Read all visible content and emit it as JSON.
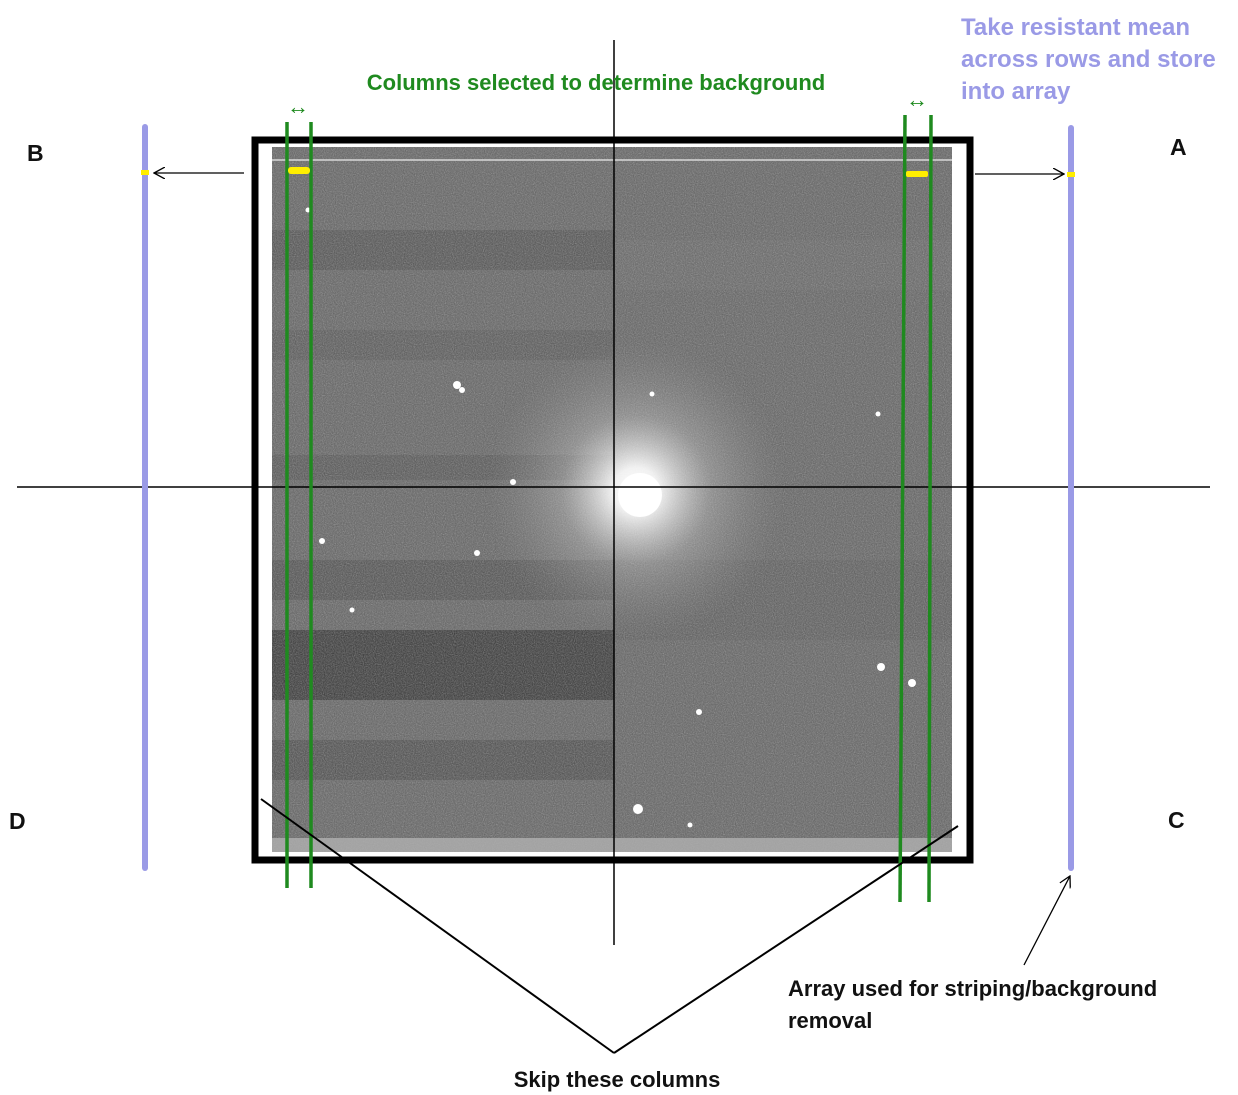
{
  "labels": {
    "columns_selected": "Columns selected to determine background",
    "take_mean_line1": "Take resistant mean",
    "take_mean_line2": "across rows and store",
    "take_mean_line3": "into array",
    "array_used_line1": "Array used for striping/background",
    "array_used_line2": "removal",
    "skip_columns": "Skip these columns",
    "corner_a": "A",
    "corner_b": "B",
    "corner_c": "C",
    "corner_d": "D",
    "width_arrow_symbol": "↔"
  },
  "colors": {
    "annotation_green": "#1f8a1f",
    "annotation_purple": "#9a9ae6",
    "marker_yellow": "#ffee00",
    "frame_black": "#000000",
    "image_background": "#5e5e5e"
  }
}
